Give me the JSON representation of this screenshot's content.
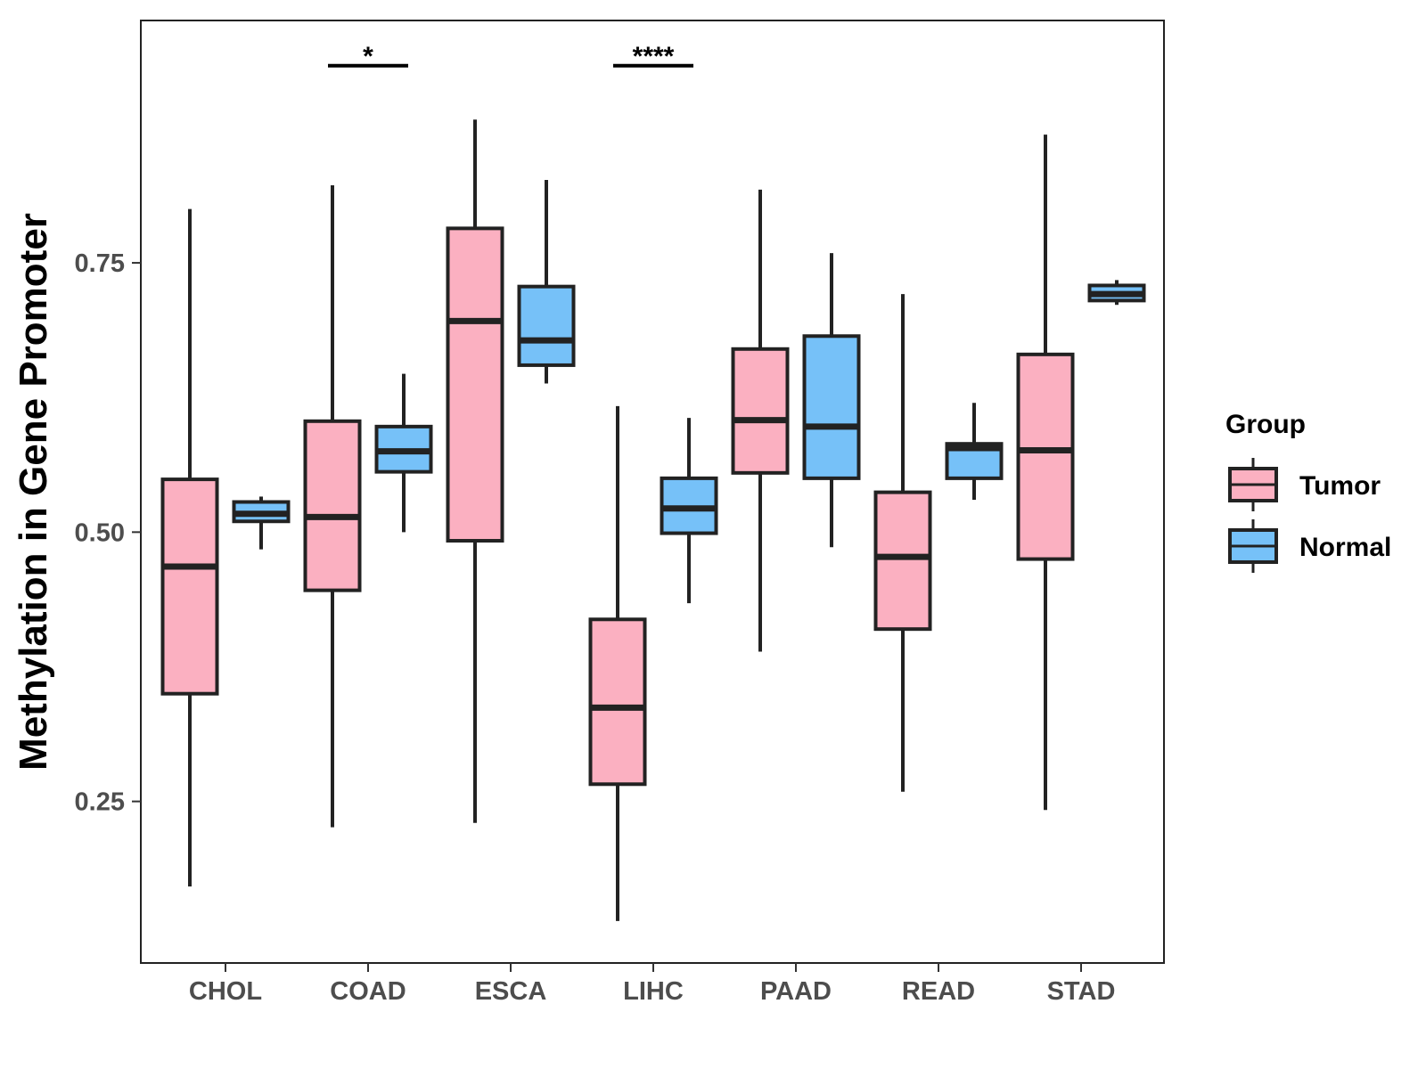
{
  "chart_data": {
    "type": "boxplot",
    "title": "",
    "xlabel": "",
    "ylabel": "Methylation in Gene Promoter",
    "ylim": [
      0.1,
      0.975
    ],
    "yticks": [
      0.25,
      0.5,
      0.75
    ],
    "ytick_labels": [
      "0.25",
      "0.50",
      "0.75"
    ],
    "categories": [
      "CHOL",
      "COAD",
      "ESCA",
      "LIHC",
      "PAAD",
      "READ",
      "STAD"
    ],
    "legend": {
      "title": "Group",
      "position": "right",
      "entries": [
        {
          "name": "Tumor",
          "color": "#fbb0c1"
        },
        {
          "name": "Normal",
          "color": "#76c1f8"
        }
      ]
    },
    "series": [
      {
        "name": "Tumor",
        "color": "#fbb0c1",
        "boxes": [
          {
            "category": "CHOL",
            "min": 0.171,
            "q1": 0.35,
            "median": 0.468,
            "q3": 0.549,
            "max": 0.8
          },
          {
            "category": "COAD",
            "min": 0.226,
            "q1": 0.446,
            "median": 0.514,
            "q3": 0.603,
            "max": 0.822
          },
          {
            "category": "ESCA",
            "min": 0.23,
            "q1": 0.492,
            "median": 0.696,
            "q3": 0.782,
            "max": 0.883
          },
          {
            "category": "LIHC",
            "min": 0.139,
            "q1": 0.266,
            "median": 0.337,
            "q3": 0.419,
            "max": 0.617
          },
          {
            "category": "PAAD",
            "min": 0.389,
            "q1": 0.555,
            "median": 0.604,
            "q3": 0.67,
            "max": 0.818
          },
          {
            "category": "READ",
            "min": 0.259,
            "q1": 0.41,
            "median": 0.477,
            "q3": 0.537,
            "max": 0.721
          },
          {
            "category": "STAD",
            "min": 0.242,
            "q1": 0.475,
            "median": 0.576,
            "q3": 0.665,
            "max": 0.869
          }
        ]
      },
      {
        "name": "Normal",
        "color": "#76c1f8",
        "boxes": [
          {
            "category": "CHOL",
            "min": 0.484,
            "q1": 0.51,
            "median": 0.517,
            "q3": 0.528,
            "max": 0.533
          },
          {
            "category": "COAD",
            "min": 0.5,
            "q1": 0.556,
            "median": 0.575,
            "q3": 0.598,
            "max": 0.647
          },
          {
            "category": "ESCA",
            "min": 0.638,
            "q1": 0.655,
            "median": 0.678,
            "q3": 0.728,
            "max": 0.827
          },
          {
            "category": "LIHC",
            "min": 0.434,
            "q1": 0.499,
            "median": 0.522,
            "q3": 0.55,
            "max": 0.606
          },
          {
            "category": "PAAD",
            "min": 0.486,
            "q1": 0.55,
            "median": 0.598,
            "q3": 0.682,
            "max": 0.759
          },
          {
            "category": "READ",
            "min": 0.53,
            "q1": 0.55,
            "median": 0.578,
            "q3": 0.582,
            "max": 0.62
          },
          {
            "category": "STAD",
            "min": 0.711,
            "q1": 0.715,
            "median": 0.721,
            "q3": 0.729,
            "max": 0.734
          }
        ]
      }
    ],
    "annotations": [
      {
        "category": "COAD",
        "label": "*",
        "y": 0.933
      },
      {
        "category": "LIHC",
        "label": "****",
        "y": 0.933
      }
    ],
    "grid": false
  }
}
